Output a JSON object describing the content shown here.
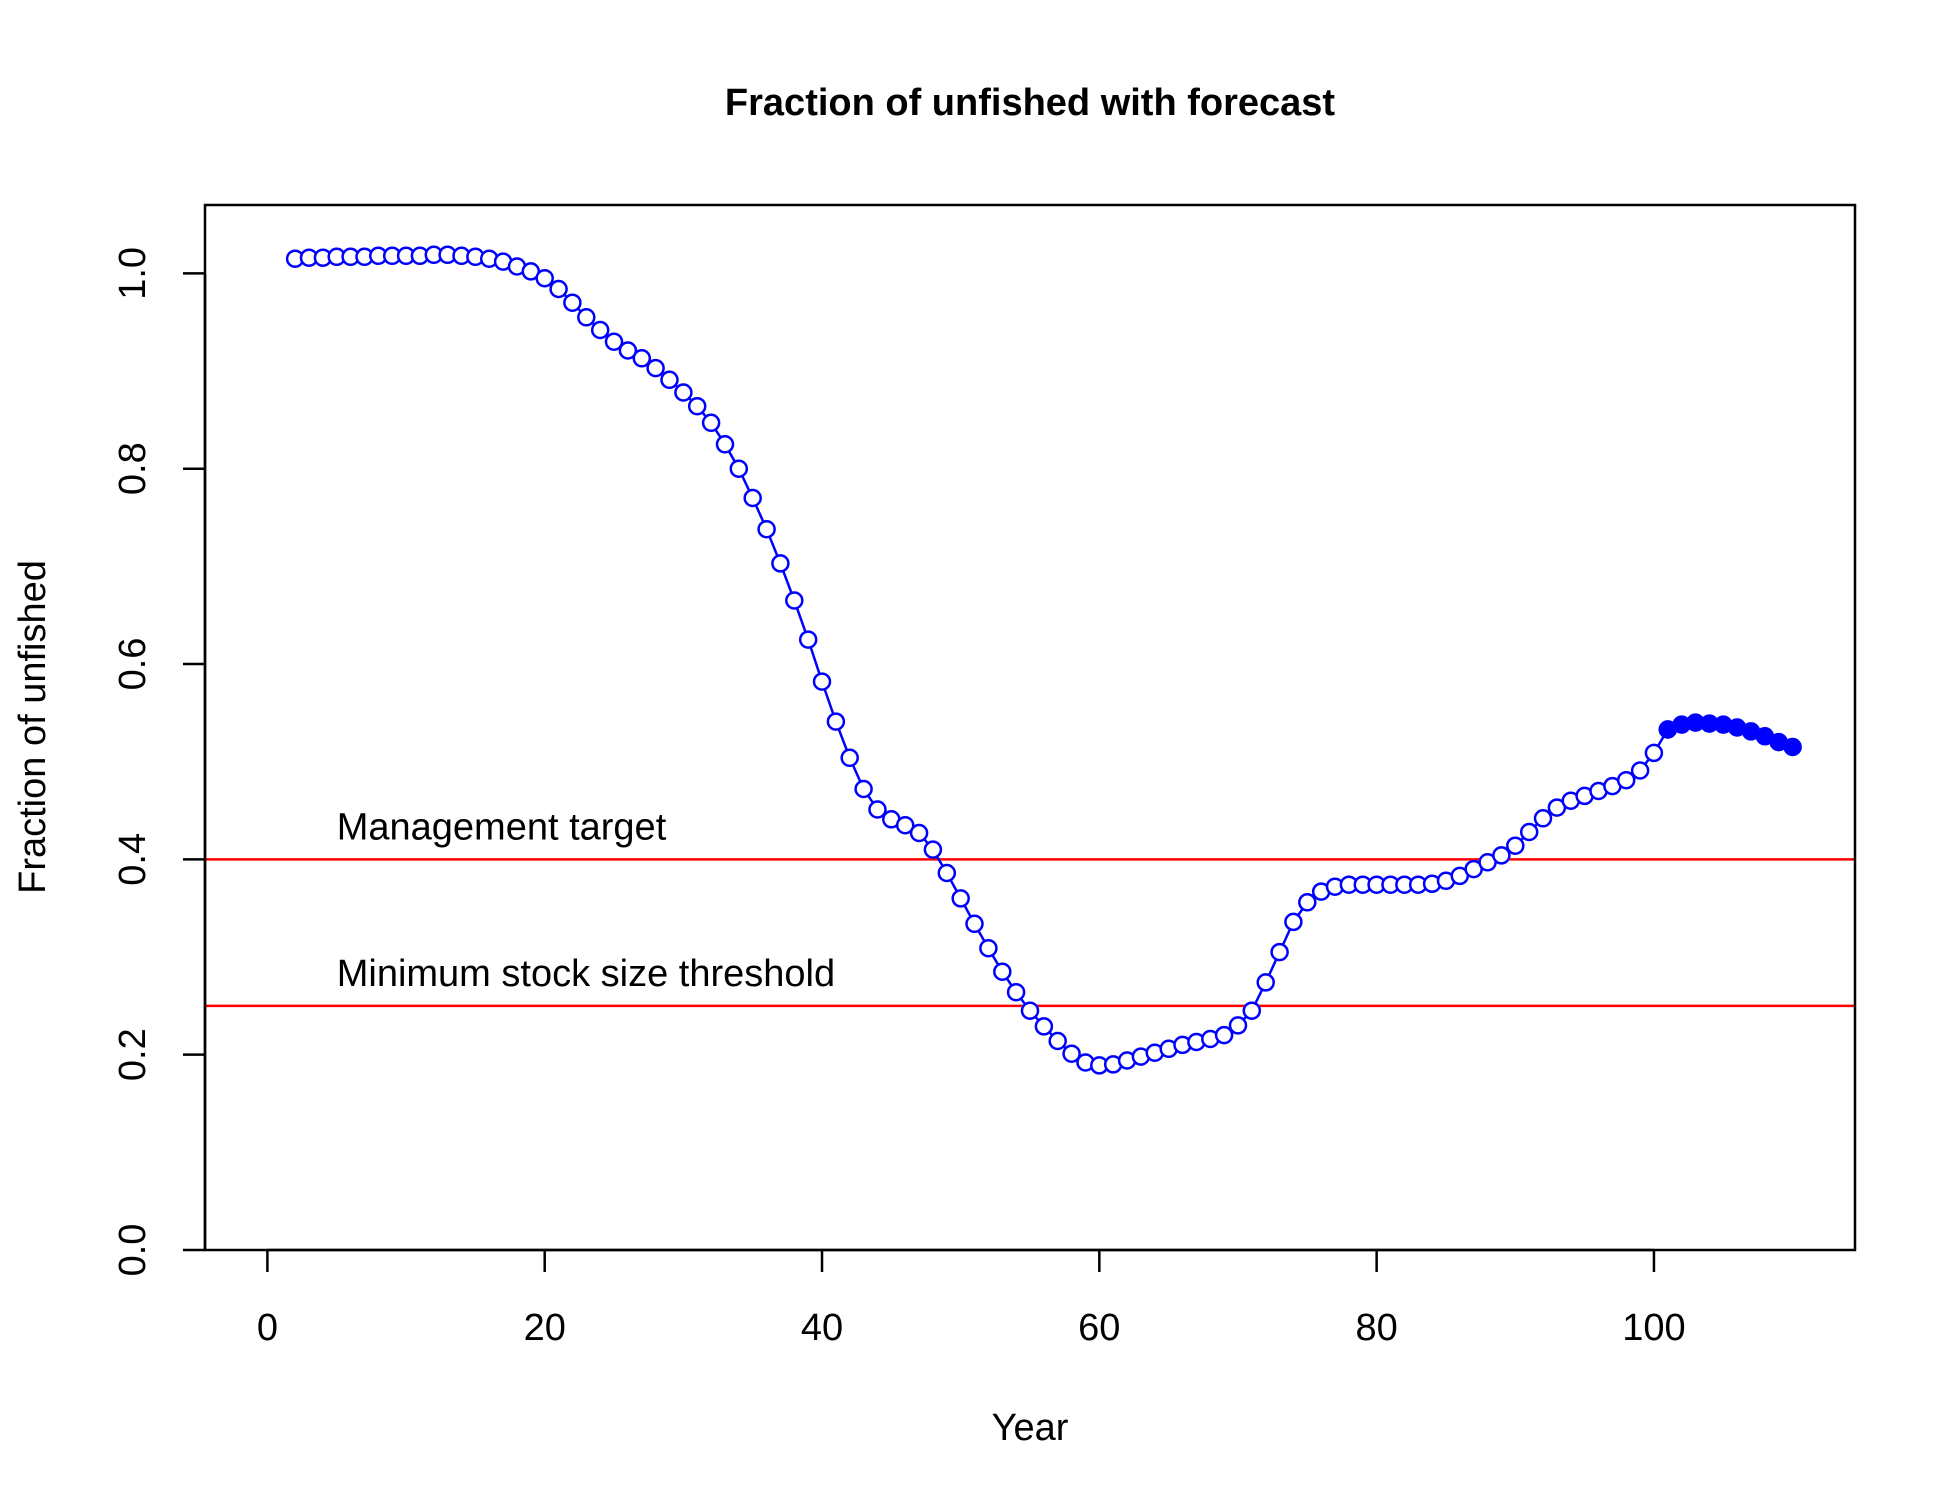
{
  "chart_data": {
    "type": "line",
    "title": "Fraction of unfished with forecast",
    "xlabel": "Year",
    "ylabel": "Fraction of unfished",
    "xlim": [
      -4.5,
      114.5
    ],
    "ylim": [
      0,
      1.07
    ],
    "xticks": [
      0,
      20,
      40,
      60,
      80,
      100
    ],
    "yticks": [
      0.0,
      0.2,
      0.4,
      0.6,
      0.8,
      1.0
    ],
    "xtick_labels": [
      "0",
      "20",
      "40",
      "60",
      "80",
      "100"
    ],
    "ytick_labels": [
      "0.0",
      "0.2",
      "0.4",
      "0.6",
      "0.8",
      "1.0"
    ],
    "grid": false,
    "colors": {
      "series": "#0000ff",
      "reference": "#ff0000"
    },
    "reference_lines": [
      {
        "label": "Management target",
        "y": 0.4
      },
      {
        "label": "Minimum stock size threshold",
        "y": 0.25
      }
    ],
    "series": [
      {
        "marker": "open-circle",
        "x": [
          2,
          3,
          4,
          5,
          6,
          7,
          8,
          9,
          10,
          11,
          12,
          13,
          14,
          15,
          16,
          17,
          18,
          19,
          20,
          21,
          22,
          23,
          24,
          25,
          26,
          27,
          28,
          29,
          30,
          31,
          32,
          33,
          34,
          35,
          36,
          37,
          38,
          39,
          40,
          41,
          42,
          43,
          44,
          45,
          46,
          47,
          48,
          49,
          50,
          51,
          52,
          53,
          54,
          55,
          56,
          57,
          58,
          59,
          60,
          61,
          62,
          63,
          64,
          65,
          66,
          67,
          68,
          69,
          70,
          71,
          72,
          73,
          74,
          75,
          76,
          77,
          78,
          79,
          80,
          81,
          82,
          83,
          84,
          85,
          86,
          87,
          88,
          89,
          90,
          91,
          92,
          93,
          94,
          95,
          96,
          97,
          98,
          99,
          100,
          101
        ],
        "y": [
          1.015,
          1.016,
          1.016,
          1.017,
          1.017,
          1.017,
          1.018,
          1.018,
          1.018,
          1.018,
          1.019,
          1.019,
          1.018,
          1.017,
          1.015,
          1.012,
          1.007,
          1.002,
          0.995,
          0.984,
          0.97,
          0.955,
          0.942,
          0.93,
          0.921,
          0.913,
          0.903,
          0.891,
          0.878,
          0.864,
          0.847,
          0.825,
          0.8,
          0.77,
          0.738,
          0.703,
          0.665,
          0.625,
          0.582,
          0.541,
          0.504,
          0.472,
          0.451,
          0.441,
          0.435,
          0.427,
          0.41,
          0.386,
          0.36,
          0.334,
          0.309,
          0.285,
          0.264,
          0.245,
          0.229,
          0.214,
          0.201,
          0.192,
          0.189,
          0.19,
          0.194,
          0.198,
          0.202,
          0.206,
          0.21,
          0.213,
          0.216,
          0.22,
          0.23,
          0.245,
          0.274,
          0.305,
          0.336,
          0.356,
          0.367,
          0.372,
          0.374,
          0.374,
          0.374,
          0.374,
          0.374,
          0.374,
          0.375,
          0.378,
          0.383,
          0.39,
          0.397,
          0.404,
          0.414,
          0.428,
          0.442,
          0.453,
          0.46,
          0.465,
          0.47,
          0.475,
          0.481,
          0.491,
          0.509,
          0.533
        ]
      },
      {
        "marker": "filled-circle",
        "x": [
          101,
          102,
          103,
          104,
          105,
          106,
          107,
          108,
          109,
          110
        ],
        "y": [
          0.533,
          0.538,
          0.54,
          0.539,
          0.538,
          0.535,
          0.531,
          0.526,
          0.52,
          0.515
        ]
      }
    ]
  }
}
